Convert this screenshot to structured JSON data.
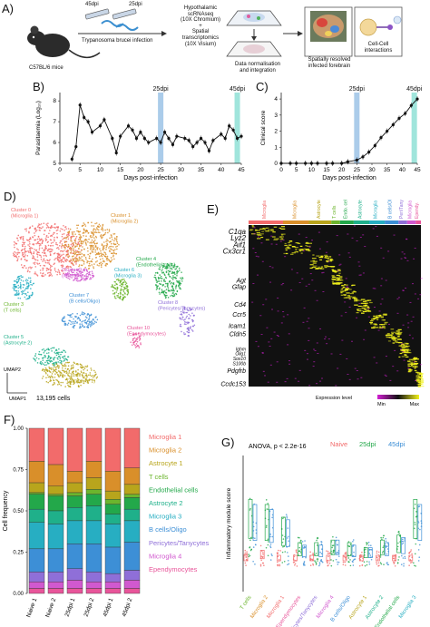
{
  "panels": {
    "a": {
      "letter": "A)"
    },
    "b": {
      "letter": "B)"
    },
    "c": {
      "letter": "C)"
    },
    "d": {
      "letter": "D)"
    },
    "e": {
      "letter": "E)"
    },
    "f": {
      "letter": "F)"
    },
    "g": {
      "letter": "G)"
    }
  },
  "schematic": {
    "mouse_label": "C57BL/6 mice",
    "dpi_45": "45dpi",
    "dpi_25": "25dpi",
    "infection_label": "Trypanosoma brucei infection",
    "assay_line1": "Hypothalamic",
    "assay_line2": "scRNAseq",
    "assay_line3": "(10X Chromium)",
    "plus": "+",
    "assay_line4": "Spatial",
    "assay_line5": "transcriptomics",
    "assay_line6": "(10X Visium)",
    "norm_line1": "Data normalisation",
    "norm_line2": "and integration",
    "spatial_line1": "Spatially resolved",
    "spatial_line2": "infected forebrain",
    "cell_line1": "Cell-Cell",
    "cell_line2": "interactions"
  },
  "colors": {
    "microglia1": "#f26b6b",
    "microglia2": "#d98f2a",
    "astrocyte1": "#b8a51c",
    "tcells": "#6cb52d",
    "endothelial": "#23a84a",
    "astrocyte2": "#1fb08a",
    "microglia3": "#27aec2",
    "bcells": "#3d8fd6",
    "pericytes": "#8f6fd8",
    "microglia4": "#d159cf",
    "ependymocytes": "#e8559a",
    "highlight25": "#9cc3e6",
    "highlight45": "#8fe0d6",
    "heat_low": "#d21fd2",
    "heat_mid": "#111111",
    "heat_high": "#f2f21c"
  },
  "chart_data": [
    {
      "id": "B",
      "type": "line",
      "xlabel": "Days post-infection",
      "ylabel": "Parasitaemia (Log₁₀)",
      "x": [
        3,
        4,
        5,
        6,
        7,
        8,
        10,
        11,
        13,
        14,
        15,
        17,
        18,
        19,
        20,
        21,
        22,
        24,
        25,
        26,
        27,
        28,
        29,
        31,
        32,
        33,
        34,
        35,
        36,
        37,
        38,
        40,
        41,
        42,
        43,
        44,
        45
      ],
      "y": [
        5.2,
        5.8,
        7.8,
        7.2,
        7.0,
        6.5,
        6.8,
        7.1,
        6.2,
        5.5,
        6.3,
        6.8,
        6.6,
        6.2,
        6.5,
        6.2,
        6.0,
        6.2,
        6.0,
        6.5,
        6.2,
        5.9,
        6.3,
        6.2,
        6.1,
        5.8,
        6.0,
        6.2,
        6.0,
        5.6,
        6.1,
        6.4,
        6.2,
        6.8,
        6.6,
        6.2,
        6.3
      ],
      "xticks": [
        "0",
        "5",
        "10",
        "15",
        "20",
        "25",
        "30",
        "35",
        "40",
        "45"
      ],
      "yticks": [
        "5",
        "6",
        "7",
        "8"
      ],
      "xlim": [
        0,
        45
      ],
      "ylim": [
        5,
        8.4
      ],
      "annotations": [
        "25dpi",
        "45dpi"
      ]
    },
    {
      "id": "C",
      "type": "line",
      "xlabel": "Days post-infection",
      "ylabel": "Clinical score",
      "x": [
        0,
        3,
        5,
        8,
        10,
        12,
        15,
        17,
        20,
        22,
        25,
        27,
        29,
        31,
        33,
        35,
        37,
        39,
        41,
        43,
        45
      ],
      "y": [
        0,
        0,
        0,
        0,
        0,
        0,
        0,
        0,
        0,
        0.1,
        0.2,
        0.4,
        0.7,
        1.1,
        1.6,
        2.0,
        2.4,
        2.8,
        3.1,
        3.6,
        4.0
      ],
      "xticks": [
        "0",
        "5",
        "10",
        "15",
        "20",
        "25",
        "30",
        "35",
        "40",
        "45"
      ],
      "yticks": [
        "0",
        "1",
        "2",
        "3",
        "4"
      ],
      "xlim": [
        0,
        45
      ],
      "ylim": [
        0,
        4.4
      ],
      "annotations": [
        "25dpi",
        "45dpi"
      ]
    },
    {
      "id": "F",
      "type": "bar",
      "ylabel": "Cell frequency",
      "categories": [
        "Naive 1",
        "Naive 2",
        "25dpi 1",
        "25dpi 2",
        "45dpi 1",
        "45dpi 2"
      ],
      "yticks": [
        "0.00",
        "0.25",
        "0.50",
        "0.75",
        "1.00"
      ],
      "ylim": [
        0,
        1
      ],
      "series": [
        {
          "name": "Microglia 1",
          "values": [
            0.2,
            0.22,
            0.26,
            0.2,
            0.26,
            0.24
          ]
        },
        {
          "name": "Microglia 2",
          "values": [
            0.13,
            0.13,
            0.07,
            0.1,
            0.12,
            0.1
          ]
        },
        {
          "name": "Astrocyte 1",
          "values": [
            0.06,
            0.05,
            0.06,
            0.07,
            0.05,
            0.06
          ]
        },
        {
          "name": "T cells",
          "values": [
            0.01,
            0.01,
            0.02,
            0.03,
            0.03,
            0.02
          ]
        },
        {
          "name": "Endothelial cells",
          "values": [
            0.09,
            0.09,
            0.07,
            0.07,
            0.06,
            0.07
          ]
        },
        {
          "name": "Astrocyte 2",
          "values": [
            0.08,
            0.08,
            0.08,
            0.09,
            0.06,
            0.07
          ]
        },
        {
          "name": "Microglia 3",
          "values": [
            0.16,
            0.15,
            0.14,
            0.14,
            0.14,
            0.13
          ]
        },
        {
          "name": "B cells/Oligo",
          "values": [
            0.14,
            0.14,
            0.15,
            0.17,
            0.16,
            0.17
          ]
        },
        {
          "name": "Pericytes/Tanycytes",
          "values": [
            0.06,
            0.06,
            0.07,
            0.06,
            0.05,
            0.06
          ]
        },
        {
          "name": "Microglia 4",
          "values": [
            0.04,
            0.04,
            0.05,
            0.04,
            0.04,
            0.05
          ]
        },
        {
          "name": "Ependymocytes",
          "values": [
            0.03,
            0.03,
            0.03,
            0.03,
            0.03,
            0.03
          ]
        }
      ]
    },
    {
      "id": "G",
      "type": "scatter",
      "ylabel": "Inflammatory module score",
      "annotation": "ANOVA, p < 2.2e-16",
      "legend": [
        "Naive",
        "25dpi",
        "45dpi"
      ],
      "categories": [
        "T cells",
        "Microglia 2",
        "Microglia 1",
        "Ependymocytes",
        "Pericytes/Tanycytes",
        "Microglia 4",
        "B cells/Oligo",
        "Astrocyte 1",
        "Astrocyte 2",
        "Endothelial cells",
        "Microglia 3"
      ],
      "series": [
        {
          "name": "Naive",
          "values": [
            0.0,
            0.02,
            0.0,
            0.0,
            0.0,
            0.0,
            0.0,
            0.0,
            0.0,
            0.0,
            0.0
          ]
        },
        {
          "name": "25dpi",
          "values": [
            0.22,
            0.2,
            0.15,
            0.05,
            0.05,
            0.06,
            0.05,
            0.03,
            0.06,
            0.08,
            0.22
          ]
        },
        {
          "name": "45dpi",
          "values": [
            0.2,
            0.18,
            0.14,
            0.04,
            0.04,
            0.06,
            0.04,
            0.03,
            0.05,
            0.07,
            0.2
          ]
        }
      ]
    }
  ],
  "umap": {
    "cells_label": "13,195 cells",
    "axis1": "UMAP1",
    "axis2": "UMAP2",
    "clusters": [
      {
        "line1": "Cluster 0",
        "line2": "(Microglia 1)",
        "color_key": "microglia1"
      },
      {
        "line1": "Cluster 1",
        "line2": "(Microglia 2)",
        "color_key": "microglia2"
      },
      {
        "line1": "Cluster 4",
        "line2": "(Endothelial cells)",
        "color_key": "endothelial"
      },
      {
        "line1": "Cluster 9",
        "line2": "(Microglia 4)",
        "color_key": "microglia4"
      },
      {
        "line1": "Cluster 3",
        "line2": "(T cells)",
        "color_key": "tcells"
      },
      {
        "line1": "Cluster 6",
        "line2": "(Microglia 3)",
        "color_key": "microglia3"
      },
      {
        "line1": "Cluster 7",
        "line2": "(B cells/Oligo)",
        "color_key": "bcells"
      },
      {
        "line1": "Cluster 8",
        "line2": "(Pericytes/Tanycytes)",
        "color_key": "pericytes"
      },
      {
        "line1": "Cluster 5",
        "line2": "(Astrocyte 2)",
        "color_key": "astrocyte2"
      },
      {
        "line1": "Cluster 10",
        "line2": "(Ependymocytes)",
        "color_key": "ependymocytes"
      },
      {
        "line1": "Cluster 2",
        "line2": "(Astrocyte 1)",
        "color_key": "astrocyte1"
      }
    ]
  },
  "heatmap": {
    "columns": [
      {
        "label": "Microglia 1",
        "color_key": "microglia1"
      },
      {
        "label": "Microglia 2",
        "color_key": "microglia2"
      },
      {
        "label": "Astrocyte 1",
        "color_key": "astrocyte1"
      },
      {
        "label": "T cells",
        "color_key": "tcells"
      },
      {
        "label": "Endo. cells",
        "color_key": "endothelial"
      },
      {
        "label": "Astrocyte 2",
        "color_key": "astrocyte2"
      },
      {
        "label": "Microglia 3",
        "color_key": "microglia3"
      },
      {
        "label": "B cells/Oligo",
        "color_key": "bcells"
      },
      {
        "label": "Peri/Tanycytes",
        "color_key": "pericytes"
      },
      {
        "label": "Microglia 4",
        "color_key": "microglia4"
      },
      {
        "label": "Ependy.",
        "color_key": "ependymocytes"
      }
    ],
    "genes": [
      "C1qa",
      "Lyz2",
      "Aif1",
      "Cx3cr1",
      "Agt",
      "Gfap",
      "Cd4",
      "Ccr5",
      "Icam1",
      "Cldn5",
      "Ighm",
      "Olig1",
      "Sox10",
      "S100b",
      "Pdgfrb",
      "Ccdc153"
    ],
    "legend_title": "Expression level",
    "legend_min": "Min",
    "legend_max": "Max"
  }
}
